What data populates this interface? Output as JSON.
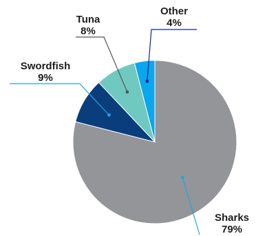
{
  "chart_data": {
    "type": "pie",
    "title": "",
    "slices": [
      {
        "label": "Sharks",
        "value": 79,
        "value_label": "79%",
        "color": "#939598"
      },
      {
        "label": "Swordfish",
        "value": 9,
        "value_label": "9%",
        "color": "#0a3d7c"
      },
      {
        "label": "Tuna",
        "value": 8,
        "value_label": "8%",
        "color": "#6fc9c1"
      },
      {
        "label": "Other",
        "value": 4,
        "value_label": "4%",
        "color": "#0aa6ee"
      }
    ],
    "start_angle_deg": 0,
    "direction": "clockwise",
    "legend": "none",
    "labels": "outside-with-leader-lines"
  }
}
